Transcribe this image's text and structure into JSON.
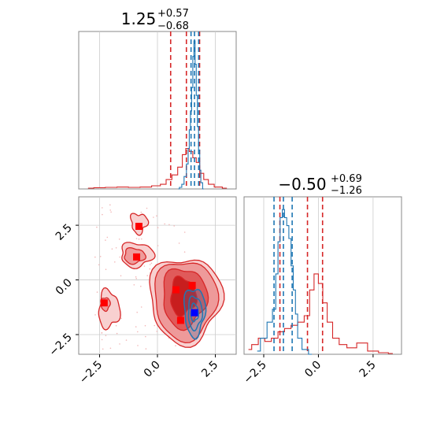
{
  "chart_data": {
    "type": "corner",
    "panels": [
      {
        "id": "hist-param1",
        "type": "histogram",
        "title": {
          "median": "1.25",
          "plus": "+0.57",
          "minus": "−0.68"
        },
        "xlim": [
          -3.4,
          3.4
        ],
        "series": [
          {
            "color": "#d62728",
            "bins_x": [
              -3.0,
              -2.5,
              -2.0,
              -1.5,
              -1.0,
              -0.5,
              0.0,
              0.25,
              0.5,
              0.75,
              1.0,
              1.15,
              1.3,
              1.45,
              1.6,
              1.75,
              1.9,
              2.1,
              2.3,
              2.6,
              3.0
            ],
            "heights": [
              0.005,
              0.008,
              0.01,
              0.012,
              0.01,
              0.012,
              0.02,
              0.03,
              0.06,
              0.09,
              0.14,
              0.22,
              0.26,
              0.24,
              0.2,
              0.17,
              0.1,
              0.06,
              0.03,
              0.012,
              0.005
            ],
            "quantiles": [
              0.57,
              1.25,
              1.82
            ]
          },
          {
            "color": "#1f77b4",
            "bins_x": [
              0.9,
              1.0,
              1.1,
              1.2,
              1.3,
              1.35,
              1.4,
              1.45,
              1.5,
              1.55,
              1.6,
              1.65,
              1.7,
              1.75,
              1.8,
              1.85,
              1.9,
              2.0
            ],
            "heights": [
              0.0,
              0.01,
              0.03,
              0.08,
              0.16,
              0.26,
              0.38,
              0.5,
              0.65,
              0.85,
              0.95,
              0.8,
              0.6,
              0.4,
              0.25,
              0.12,
              0.04,
              0.0
            ],
            "quantiles": [
              1.45,
              1.6,
              1.78
            ]
          }
        ]
      },
      {
        "id": "hist-param2",
        "type": "histogram",
        "title": {
          "median": "−0.50",
          "plus": "+0.69",
          "minus": "−1.26"
        },
        "xlim": [
          -3.4,
          3.8
        ],
        "x_tick_labels": [
          "−2.5",
          "0.0",
          "2.5"
        ],
        "x_ticks": [
          -2.5,
          0.0,
          2.5
        ],
        "series": [
          {
            "color": "#d62728",
            "bins_x": [
              -3.2,
              -2.9,
              -2.6,
              -2.3,
              -2.0,
              -1.7,
              -1.4,
              -1.1,
              -0.8,
              -0.5,
              -0.3,
              -0.1,
              0.1,
              0.3,
              0.5,
              0.8,
              1.1,
              1.5,
              2.0,
              2.5,
              3.0,
              3.4
            ],
            "heights": [
              0.03,
              0.06,
              0.1,
              0.08,
              0.1,
              0.14,
              0.16,
              0.18,
              0.2,
              0.24,
              0.4,
              0.5,
              0.44,
              0.32,
              0.2,
              0.1,
              0.06,
              0.04,
              0.07,
              0.02,
              0.01,
              0.005
            ],
            "quantiles": [
              -1.76,
              -0.5,
              0.19
            ]
          },
          {
            "color": "#1f77b4",
            "bins_x": [
              -2.8,
              -2.5,
              -2.2,
              -2.0,
              -1.9,
              -1.8,
              -1.7,
              -1.6,
              -1.5,
              -1.4,
              -1.3,
              -1.2,
              -1.1,
              -1.0,
              -0.9,
              -0.6,
              -0.3
            ],
            "heights": [
              0.02,
              0.1,
              0.2,
              0.28,
              0.5,
              0.7,
              0.85,
              0.9,
              0.85,
              0.8,
              0.72,
              0.55,
              0.4,
              0.25,
              0.1,
              0.03,
              0.0
            ],
            "quantiles": [
              -2.03,
              -1.6,
              -1.2
            ]
          }
        ]
      },
      {
        "id": "joint",
        "type": "contour",
        "xlim": [
          -3.4,
          3.4
        ],
        "ylim": [
          -3.4,
          3.8
        ],
        "x_tick_labels": [
          "−2.5",
          "0.0",
          "2.5"
        ],
        "x_ticks": [
          -2.5,
          0.0,
          2.5
        ],
        "y_tick_labels": [
          "2.5",
          "0.0",
          "−2.5"
        ],
        "y_ticks": [
          2.5,
          0.0,
          -2.5
        ],
        "red_markers": [
          [
            -0.9,
            1.05
          ],
          [
            -2.3,
            -1.05
          ],
          [
            0.8,
            -0.45
          ],
          [
            1.5,
            -0.25
          ],
          [
            1.0,
            -1.85
          ],
          [
            -0.8,
            2.45
          ]
        ],
        "blue_marker": [
          1.6,
          -1.5
        ]
      }
    ]
  }
}
